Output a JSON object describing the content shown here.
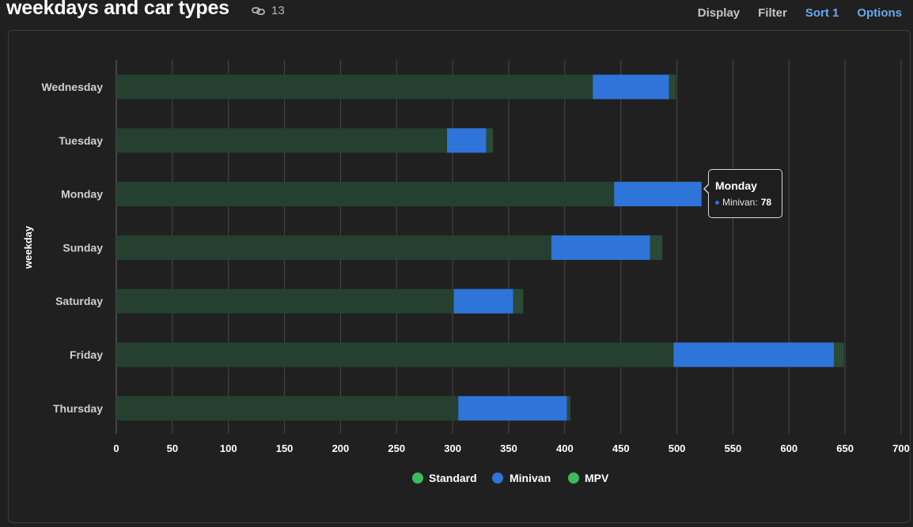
{
  "header": {
    "title": "weekdays and car types",
    "link_count": "13",
    "actions": {
      "display": "Display",
      "filter": "Filter",
      "sort": "Sort 1",
      "options": "Options"
    }
  },
  "tooltip": {
    "title": "Monday",
    "series": "Minivan:",
    "value": "78",
    "color": "#2f74d8"
  },
  "colors": {
    "standard": "#254030",
    "minivan": "#2f74d8",
    "mpv": "#2b4a35",
    "legend_standard": "#3dbb5c",
    "legend_minivan": "#2f74d8",
    "legend_mpv": "#3dbb5c",
    "grid": "#4a4a4a",
    "axis_text": "#ffffff",
    "category_text": "#cfcfcf",
    "accent": "#6aa7f0"
  },
  "chart_data": {
    "type": "bar",
    "orientation": "horizontal",
    "stacked": true,
    "categories": [
      "Wednesday",
      "Tuesday",
      "Monday",
      "Sunday",
      "Saturday",
      "Friday",
      "Thursday"
    ],
    "series": [
      {
        "name": "Standard",
        "values": [
          425,
          295,
          444,
          388,
          301,
          497,
          305
        ]
      },
      {
        "name": "Minivan",
        "values": [
          68,
          35,
          78,
          88,
          53,
          143,
          97
        ]
      },
      {
        "name": "MPV",
        "values": [
          6,
          6,
          0,
          11,
          9,
          9,
          3
        ]
      }
    ],
    "ylabel": "weekday",
    "xlabel": "",
    "xlim": [
      0,
      700
    ],
    "xticks": [
      "0",
      "50",
      "100",
      "150",
      "200",
      "250",
      "300",
      "350",
      "400",
      "450",
      "500",
      "550",
      "600",
      "650",
      "700"
    ],
    "legend": [
      "Standard",
      "Minivan",
      "MPV"
    ],
    "legend_position": "bottom",
    "grid": true
  }
}
